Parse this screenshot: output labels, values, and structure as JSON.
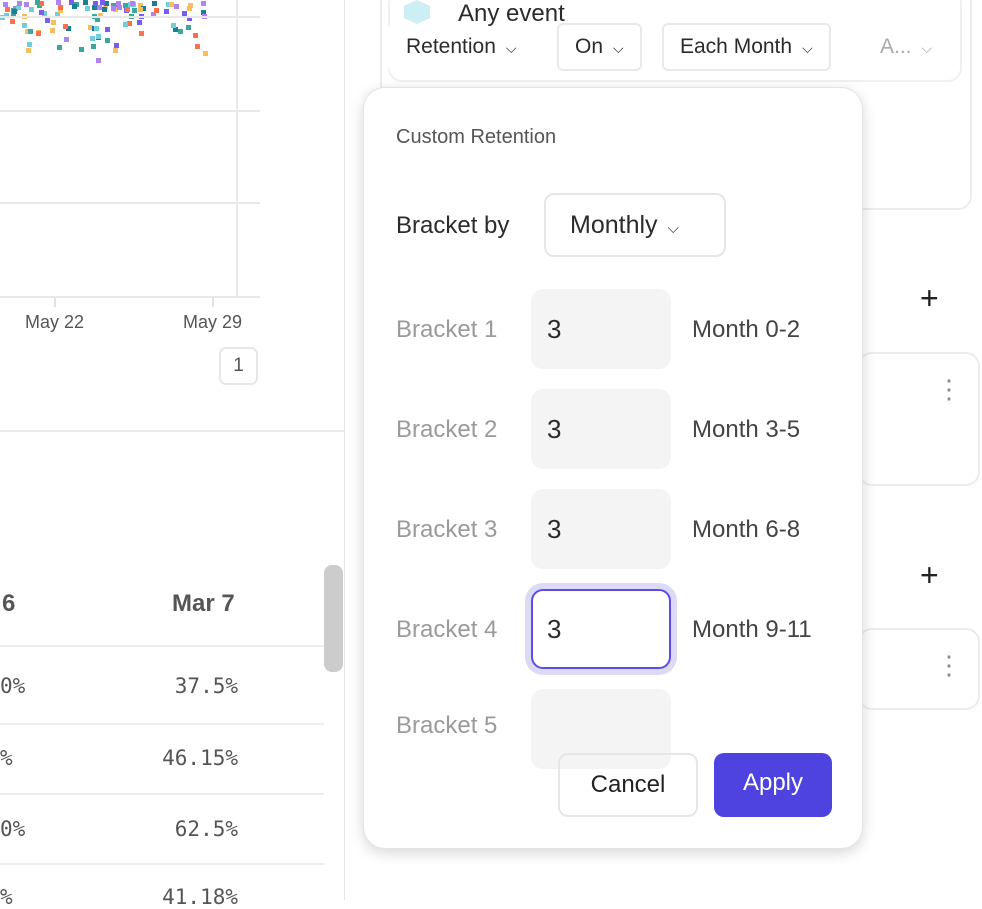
{
  "chart": {
    "x_ticks": [
      "May 22",
      "May 29"
    ],
    "page": "1"
  },
  "table": {
    "headers": [
      "6",
      "Mar 7"
    ],
    "rows": [
      [
        "0%",
        "37.5%"
      ],
      [
        "%",
        "46.15%"
      ],
      [
        "0%",
        "62.5%"
      ],
      [
        "%",
        "41.18%"
      ]
    ]
  },
  "query": {
    "event": "Any event",
    "controls": [
      "Retention",
      "On",
      "Each Month",
      "A..."
    ]
  },
  "popup": {
    "title": "Custom Retention",
    "bracket_by_label": "Bracket by",
    "bracket_by_value": "Monthly",
    "brackets": [
      {
        "label": "Bracket 1",
        "value": "3",
        "range": "Month 0-2"
      },
      {
        "label": "Bracket 2",
        "value": "3",
        "range": "Month 3-5"
      },
      {
        "label": "Bracket 3",
        "value": "3",
        "range": "Month 6-8"
      },
      {
        "label": "Bracket 4",
        "value": "3",
        "range": "Month 9-11"
      },
      {
        "label": "Bracket 5",
        "value": "",
        "range": ""
      }
    ],
    "cancel": "Cancel",
    "apply": "Apply"
  },
  "colors": {
    "accent": "#4f43e0",
    "dots": [
      "#6fd0dc",
      "#f8be5c",
      "#b084f0",
      "#1b7e94",
      "#ff6f4a",
      "#7b5cf0",
      "#3aa89c"
    ]
  }
}
